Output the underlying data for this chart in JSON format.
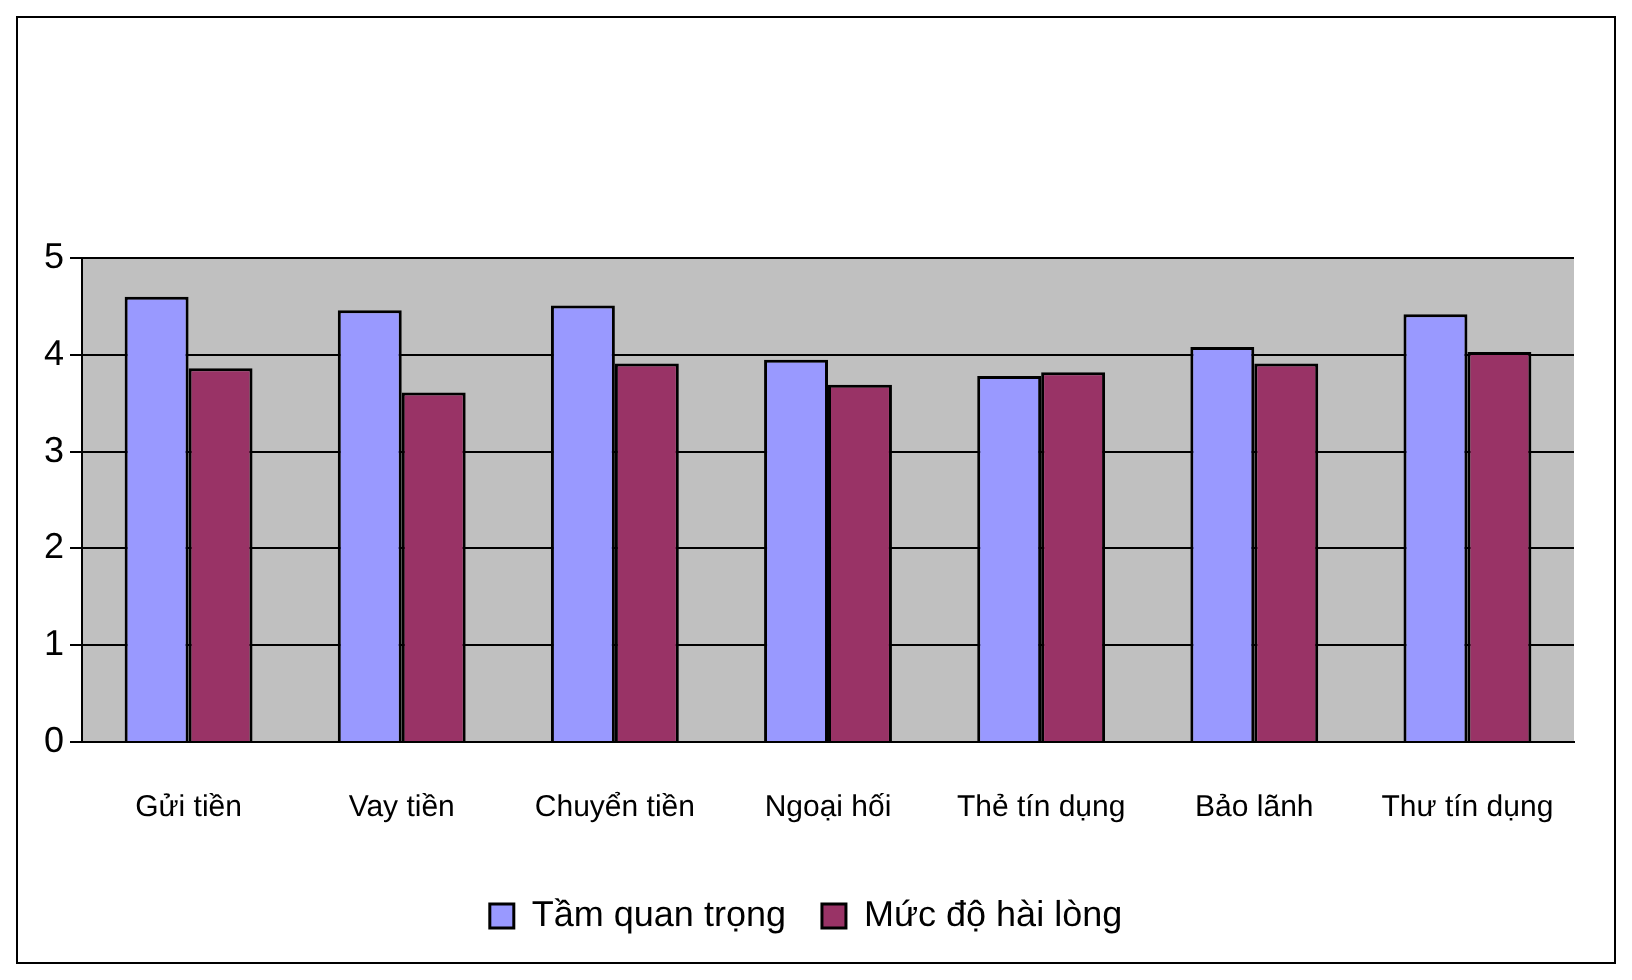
{
  "chart_data": {
    "type": "bar",
    "categories": [
      "Gửi tiền",
      "Vay tiền",
      "Chuyển tiền",
      "Ngoại hối",
      "Thẻ tín dụng",
      "Bảo lãnh",
      "Thư tín dụng"
    ],
    "series": [
      {
        "name": "Tầm quan trọng",
        "color": "#9999ff",
        "values": [
          4.6,
          4.46,
          4.51,
          3.95,
          3.78,
          4.08,
          4.42
        ]
      },
      {
        "name": "Mức độ hài lòng",
        "color": "#993366",
        "values": [
          3.86,
          3.61,
          3.91,
          3.69,
          3.82,
          3.91,
          4.03
        ]
      }
    ],
    "ylim": [
      0,
      5
    ],
    "yticks": [
      0,
      1,
      2,
      3,
      4,
      5
    ],
    "grid": "y",
    "legend": "bottom"
  }
}
